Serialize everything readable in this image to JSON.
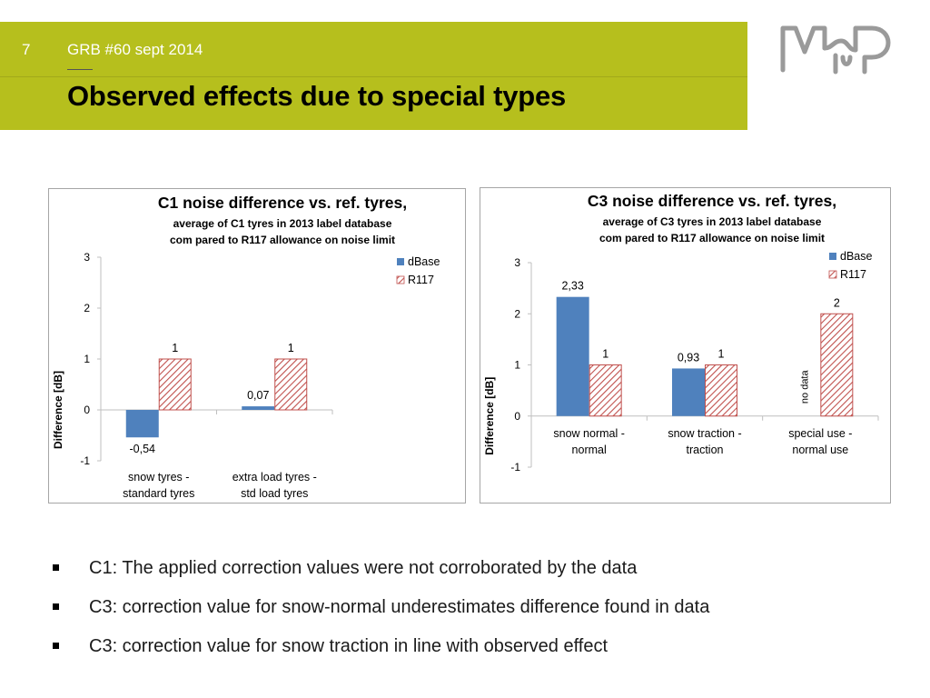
{
  "header": {
    "slide_number": "7",
    "subtitle": "GRB #60 sept 2014",
    "title": "Observed effects due to special types"
  },
  "colors": {
    "header_band": "#b6bf1d",
    "dbase": "#4f81bd",
    "r117": "#c0504d"
  },
  "bullets": [
    "C1: The applied correction values were not corroborated by the data",
    "C3: correction value for snow-normal underestimates difference found in data",
    "C3: correction value for snow traction in line with observed effect"
  ],
  "chart_data": [
    {
      "type": "bar",
      "title": "C1 noise difference vs. ref. tyres,",
      "subtitle_lines": [
        "average of C1 tyres in 2013 label database",
        "com pared to R117 allowance on noise limit"
      ],
      "xlabel": "",
      "ylabel": "Difference [dB]",
      "ylim": [
        -1,
        3
      ],
      "yticks": [
        "3",
        "2",
        "1",
        "0",
        "-1"
      ],
      "categories": [
        [
          "snow tyres -",
          "standard tyres"
        ],
        [
          "extra load tyres -",
          "std load tyres"
        ]
      ],
      "series": [
        {
          "name": "dBase",
          "values": [
            -0.54,
            0.07
          ],
          "labels": [
            "-0,54",
            "0,07"
          ]
        },
        {
          "name": "R117",
          "values": [
            1,
            1
          ],
          "labels": [
            "1",
            "1"
          ]
        }
      ],
      "legend": "top-right"
    },
    {
      "type": "bar",
      "title": "C3 noise difference vs. ref. tyres,",
      "subtitle_lines": [
        "average of C3 tyres in 2013 label database",
        "com pared to R117 allowance on noise limit"
      ],
      "xlabel": "",
      "ylabel": "Difference [dB]",
      "ylim": [
        -1,
        3
      ],
      "yticks": [
        "3",
        "2",
        "1",
        "0",
        "-1"
      ],
      "categories": [
        [
          "snow normal -",
          "normal"
        ],
        [
          "snow traction -",
          "traction"
        ],
        [
          "special use -",
          "normal use"
        ]
      ],
      "series": [
        {
          "name": "dBase",
          "values": [
            2.33,
            0.93,
            null
          ],
          "labels": [
            "2,33",
            "0,93",
            ""
          ]
        },
        {
          "name": "R117",
          "values": [
            1,
            1,
            2
          ],
          "labels": [
            "1",
            "1",
            "2"
          ]
        }
      ],
      "annotation": "no data",
      "legend": "top-right"
    }
  ]
}
